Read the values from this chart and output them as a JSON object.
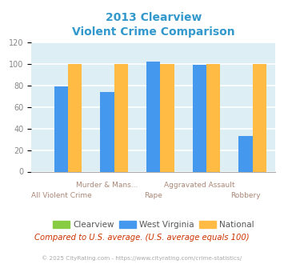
{
  "title_line1": "2013 Clearview",
  "title_line2": "Violent Crime Comparison",
  "title_color": "#3399cc",
  "x_labels_top": [
    "",
    "Murder & Mans...",
    "",
    "Aggravated Assault",
    ""
  ],
  "x_labels_bot": [
    "All Violent Crime",
    "",
    "Rape",
    "",
    "Robbery"
  ],
  "clearview": [
    0,
    0,
    0,
    0,
    0
  ],
  "west_virginia": [
    79,
    74,
    102,
    99,
    33
  ],
  "national": [
    100,
    100,
    100,
    100,
    100
  ],
  "bar_colors": {
    "clearview": "#88cc44",
    "west_virginia": "#4499ee",
    "national": "#ffbb44"
  },
  "ylim": [
    0,
    120
  ],
  "yticks": [
    0,
    20,
    40,
    60,
    80,
    100,
    120
  ],
  "plot_bg": "#ddeef5",
  "grid_color": "#ffffff",
  "legend_labels": [
    "Clearview",
    "West Virginia",
    "National"
  ],
  "footnote": "Compared to U.S. average. (U.S. average equals 100)",
  "footnote_color": "#cc3300",
  "copyright": "© 2025 CityRating.com - https://www.cityrating.com/crime-statistics/",
  "copyright_color": "#aaaaaa",
  "xlabel_color": "#aa8877",
  "ytick_color": "#888888"
}
